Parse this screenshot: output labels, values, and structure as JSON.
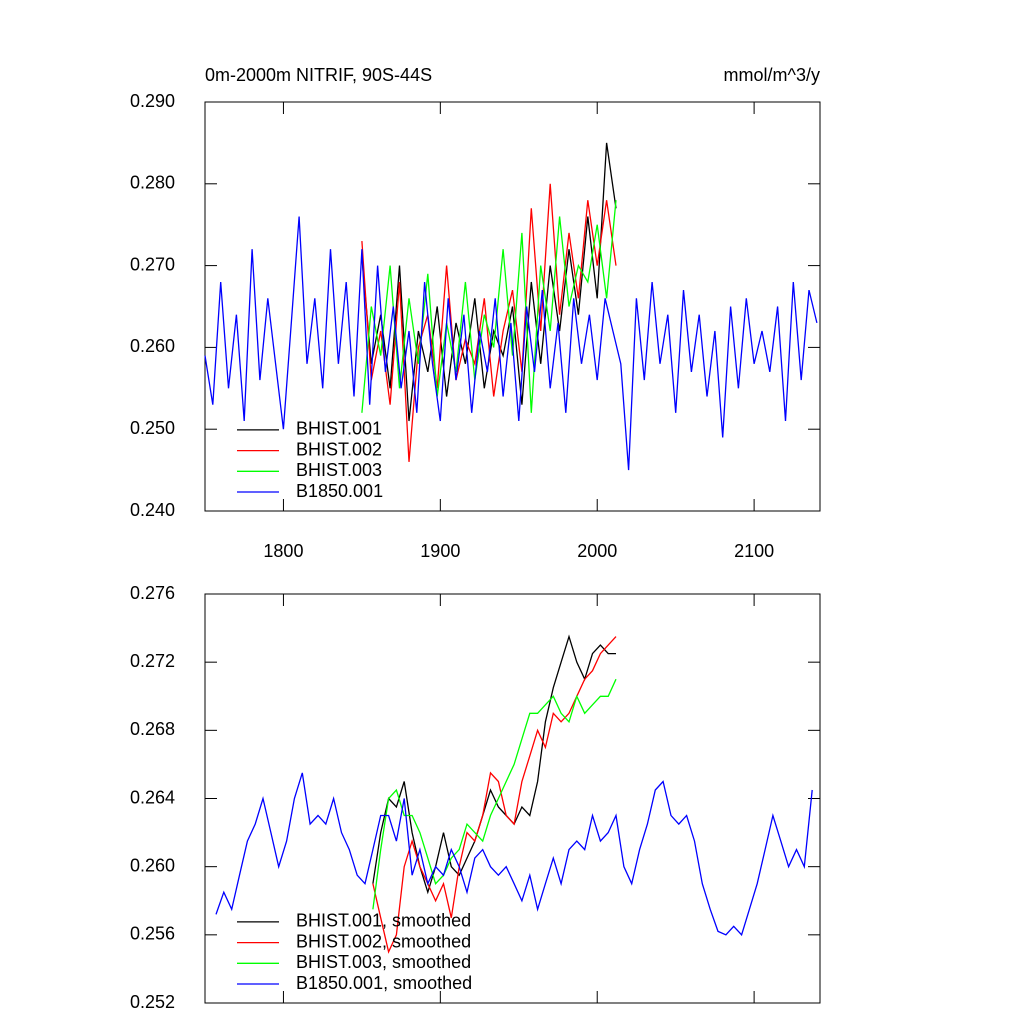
{
  "chart_data": [
    {
      "type": "line",
      "title": "0m-2000m NITRIF, 90S-44S",
      "units": "mmol/m^3/y",
      "xlim": [
        1750,
        2142
      ],
      "xticks": [
        1800,
        1900,
        2000,
        2100
      ],
      "ylim": [
        0.24,
        0.29
      ],
      "yticks": [
        {
          "value": 0.24,
          "label": "0.240"
        },
        {
          "value": 0.25,
          "label": "0.250"
        },
        {
          "value": 0.26,
          "label": "0.260"
        },
        {
          "value": 0.27,
          "label": "0.270"
        },
        {
          "value": 0.28,
          "label": "0.280"
        },
        {
          "value": 0.29,
          "label": "0.290"
        }
      ],
      "legend": "lower left",
      "series": [
        {
          "name": "BHIST.001",
          "color": "#000000",
          "x": [
            1850,
            1856,
            1862,
            1868,
            1874,
            1880,
            1886,
            1892,
            1898,
            1904,
            1910,
            1916,
            1922,
            1928,
            1934,
            1940,
            1946,
            1952,
            1958,
            1964,
            1970,
            1976,
            1982,
            1988,
            1994,
            2000,
            2006,
            2012
          ],
          "values": [
            0.271,
            0.258,
            0.264,
            0.255,
            0.27,
            0.251,
            0.262,
            0.257,
            0.265,
            0.254,
            0.263,
            0.258,
            0.266,
            0.255,
            0.262,
            0.259,
            0.265,
            0.253,
            0.268,
            0.258,
            0.27,
            0.262,
            0.272,
            0.264,
            0.276,
            0.266,
            0.285,
            0.277
          ]
        },
        {
          "name": "BHIST.002",
          "color": "#ff0000",
          "x": [
            1850,
            1856,
            1862,
            1868,
            1874,
            1880,
            1886,
            1892,
            1898,
            1904,
            1910,
            1916,
            1922,
            1928,
            1934,
            1940,
            1946,
            1952,
            1958,
            1964,
            1970,
            1976,
            1982,
            1988,
            1994,
            2000,
            2006,
            2012
          ],
          "values": [
            0.273,
            0.256,
            0.262,
            0.253,
            0.268,
            0.246,
            0.26,
            0.264,
            0.255,
            0.27,
            0.256,
            0.261,
            0.258,
            0.266,
            0.254,
            0.262,
            0.267,
            0.257,
            0.277,
            0.262,
            0.28,
            0.264,
            0.274,
            0.266,
            0.278,
            0.27,
            0.278,
            0.27
          ]
        },
        {
          "name": "BHIST.003",
          "color": "#00ff00",
          "x": [
            1850,
            1856,
            1862,
            1868,
            1874,
            1880,
            1886,
            1892,
            1898,
            1904,
            1910,
            1916,
            1922,
            1928,
            1934,
            1940,
            1946,
            1952,
            1958,
            1964,
            1970,
            1976,
            1982,
            1988,
            1994,
            2000,
            2006,
            2012
          ],
          "values": [
            0.252,
            0.265,
            0.259,
            0.27,
            0.255,
            0.266,
            0.258,
            0.269,
            0.254,
            0.263,
            0.257,
            0.268,
            0.256,
            0.264,
            0.26,
            0.272,
            0.259,
            0.274,
            0.252,
            0.27,
            0.262,
            0.276,
            0.265,
            0.27,
            0.268,
            0.275,
            0.266,
            0.278
          ]
        },
        {
          "name": "B1850.001",
          "color": "#0000ff",
          "x": [
            1750,
            1755,
            1760,
            1765,
            1770,
            1775,
            1780,
            1785,
            1790,
            1795,
            1800,
            1805,
            1810,
            1815,
            1820,
            1825,
            1830,
            1835,
            1840,
            1845,
            1850,
            1855,
            1860,
            1865,
            1870,
            1875,
            1880,
            1885,
            1890,
            1895,
            1900,
            1905,
            1910,
            1915,
            1920,
            1925,
            1930,
            1935,
            1940,
            1945,
            1950,
            1955,
            1960,
            1965,
            1970,
            1975,
            1980,
            1985,
            1990,
            1995,
            2000,
            2005,
            2010,
            2015,
            2020,
            2025,
            2030,
            2035,
            2040,
            2045,
            2050,
            2055,
            2060,
            2065,
            2070,
            2075,
            2080,
            2085,
            2090,
            2095,
            2100,
            2105,
            2110,
            2115,
            2120,
            2125,
            2130,
            2135,
            2140
          ],
          "values": [
            0.259,
            0.253,
            0.268,
            0.255,
            0.264,
            0.251,
            0.272,
            0.256,
            0.266,
            0.258,
            0.25,
            0.263,
            0.276,
            0.258,
            0.266,
            0.255,
            0.272,
            0.258,
            0.268,
            0.254,
            0.272,
            0.253,
            0.27,
            0.257,
            0.265,
            0.255,
            0.262,
            0.252,
            0.268,
            0.258,
            0.251,
            0.266,
            0.256,
            0.264,
            0.252,
            0.262,
            0.257,
            0.266,
            0.254,
            0.263,
            0.251,
            0.265,
            0.257,
            0.267,
            0.255,
            0.263,
            0.252,
            0.266,
            0.258,
            0.264,
            0.256,
            0.266,
            0.262,
            0.258,
            0.245,
            0.266,
            0.256,
            0.268,
            0.258,
            0.264,
            0.252,
            0.267,
            0.257,
            0.264,
            0.254,
            0.262,
            0.249,
            0.265,
            0.255,
            0.266,
            0.258,
            0.262,
            0.257,
            0.265,
            0.251,
            0.268,
            0.256,
            0.267,
            0.263
          ]
        }
      ]
    },
    {
      "type": "line",
      "xlim": [
        1750,
        2142
      ],
      "xticks": [
        1800,
        1900,
        2000,
        2100
      ],
      "ylim": [
        0.252,
        0.276
      ],
      "yticks": [
        0.252,
        0.256,
        {
          "value": 0.26,
          "label": "0.260"
        },
        0.264,
        {
          "value": 0.268,
          "label": "0.268"
        },
        0.272,
        0.276
      ],
      "legend": "lower left",
      "series": [
        {
          "name": "BHIST.001, smoothed",
          "color": "#000000",
          "x": [
            1857,
            1862,
            1867,
            1872,
            1877,
            1882,
            1887,
            1892,
            1897,
            1902,
            1907,
            1912,
            1917,
            1922,
            1927,
            1932,
            1937,
            1942,
            1947,
            1952,
            1957,
            1962,
            1967,
            1972,
            1977,
            1982,
            1987,
            1992,
            1997,
            2002,
            2007,
            2012
          ],
          "values": [
            0.259,
            0.262,
            0.264,
            0.2635,
            0.265,
            0.262,
            0.26,
            0.2585,
            0.26,
            0.262,
            0.26,
            0.2595,
            0.2605,
            0.2615,
            0.263,
            0.2645,
            0.2635,
            0.263,
            0.2625,
            0.2635,
            0.263,
            0.265,
            0.2685,
            0.2705,
            0.272,
            0.2735,
            0.272,
            0.271,
            0.2725,
            0.273,
            0.2725,
            0.2725
          ]
        },
        {
          "name": "BHIST.002, smoothed",
          "color": "#ff0000",
          "x": [
            1857,
            1862,
            1867,
            1872,
            1877,
            1882,
            1887,
            1892,
            1897,
            1902,
            1907,
            1912,
            1917,
            1922,
            1927,
            1932,
            1937,
            1942,
            1947,
            1952,
            1957,
            1962,
            1967,
            1972,
            1977,
            1982,
            1987,
            1992,
            1997,
            2002,
            2007,
            2012
          ],
          "values": [
            0.259,
            0.257,
            0.255,
            0.256,
            0.26,
            0.2615,
            0.26,
            0.259,
            0.258,
            0.259,
            0.257,
            0.26,
            0.262,
            0.2615,
            0.263,
            0.2655,
            0.265,
            0.263,
            0.2625,
            0.265,
            0.2665,
            0.268,
            0.267,
            0.269,
            0.2685,
            0.269,
            0.27,
            0.271,
            0.2715,
            0.2725,
            0.273,
            0.2735
          ]
        },
        {
          "name": "BHIST.003, smoothed",
          "color": "#00ff00",
          "x": [
            1857,
            1862,
            1867,
            1872,
            1877,
            1882,
            1887,
            1892,
            1897,
            1902,
            1907,
            1912,
            1917,
            1922,
            1927,
            1932,
            1937,
            1942,
            1947,
            1952,
            1957,
            1962,
            1967,
            1972,
            1977,
            1982,
            1987,
            1992,
            1997,
            2002,
            2007,
            2012
          ],
          "values": [
            0.2575,
            0.261,
            0.264,
            0.2645,
            0.263,
            0.263,
            0.262,
            0.2605,
            0.259,
            0.2595,
            0.2605,
            0.261,
            0.2625,
            0.262,
            0.2615,
            0.263,
            0.264,
            0.265,
            0.266,
            0.2675,
            0.269,
            0.269,
            0.2695,
            0.27,
            0.269,
            0.2685,
            0.27,
            0.269,
            0.2695,
            0.27,
            0.27,
            0.271
          ]
        },
        {
          "name": "B1850.001, smoothed",
          "color": "#0000ff",
          "x": [
            1757,
            1762,
            1767,
            1772,
            1777,
            1782,
            1787,
            1792,
            1797,
            1802,
            1807,
            1812,
            1817,
            1822,
            1827,
            1832,
            1837,
            1842,
            1847,
            1852,
            1857,
            1862,
            1867,
            1872,
            1877,
            1882,
            1887,
            1892,
            1897,
            1902,
            1907,
            1912,
            1917,
            1922,
            1927,
            1932,
            1937,
            1942,
            1947,
            1952,
            1957,
            1962,
            1967,
            1972,
            1977,
            1982,
            1987,
            1992,
            1997,
            2002,
            2007,
            2012,
            2017,
            2022,
            2027,
            2032,
            2037,
            2042,
            2047,
            2052,
            2057,
            2062,
            2067,
            2072,
            2077,
            2082,
            2087,
            2092,
            2097,
            2102,
            2107,
            2112,
            2117,
            2122,
            2127,
            2132,
            2137
          ],
          "values": [
            0.2572,
            0.2585,
            0.2575,
            0.2595,
            0.2615,
            0.2625,
            0.264,
            0.262,
            0.26,
            0.2615,
            0.264,
            0.2655,
            0.2625,
            0.263,
            0.2625,
            0.264,
            0.262,
            0.261,
            0.2595,
            0.259,
            0.261,
            0.263,
            0.263,
            0.2615,
            0.264,
            0.2595,
            0.261,
            0.259,
            0.26,
            0.2595,
            0.261,
            0.26,
            0.2585,
            0.2605,
            0.261,
            0.26,
            0.2595,
            0.26,
            0.259,
            0.258,
            0.2595,
            0.2575,
            0.259,
            0.2605,
            0.259,
            0.261,
            0.2615,
            0.261,
            0.263,
            0.2615,
            0.262,
            0.263,
            0.26,
            0.259,
            0.261,
            0.2625,
            0.2645,
            0.265,
            0.263,
            0.2625,
            0.263,
            0.2615,
            0.259,
            0.2575,
            0.2562,
            0.256,
            0.2565,
            0.256,
            0.2575,
            0.259,
            0.261,
            0.263,
            0.2615,
            0.26,
            0.261,
            0.26,
            0.2645
          ]
        }
      ]
    }
  ]
}
